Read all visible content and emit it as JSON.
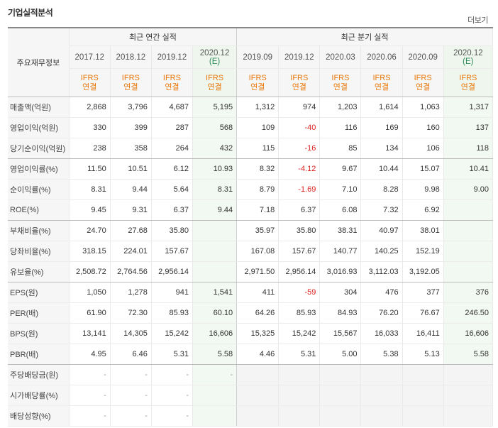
{
  "header": {
    "title": "기업실적분석",
    "more_label": "더보기"
  },
  "table": {
    "corner_label": "주요재무정보",
    "annual_header": "최근 연간 실적",
    "quarter_header": "최근 분기 실적",
    "periods": [
      {
        "label": "2017.12",
        "est": "",
        "std": "IFRS",
        "cons": "연결",
        "estimate": false
      },
      {
        "label": "2018.12",
        "est": "",
        "std": "IFRS",
        "cons": "연결",
        "estimate": false
      },
      {
        "label": "2019.12",
        "est": "",
        "std": "IFRS",
        "cons": "연결",
        "estimate": false
      },
      {
        "label": "2020.12",
        "est": "(E)",
        "std": "IFRS",
        "cons": "연결",
        "estimate": true
      },
      {
        "label": "2019.09",
        "est": "",
        "std": "IFRS",
        "cons": "연결",
        "estimate": false
      },
      {
        "label": "2019.12",
        "est": "",
        "std": "IFRS",
        "cons": "연결",
        "estimate": false
      },
      {
        "label": "2020.03",
        "est": "",
        "std": "IFRS",
        "cons": "연결",
        "estimate": false
      },
      {
        "label": "2020.06",
        "est": "",
        "std": "IFRS",
        "cons": "연결",
        "estimate": false
      },
      {
        "label": "2020.09",
        "est": "",
        "std": "IFRS",
        "cons": "연결",
        "estimate": false
      },
      {
        "label": "2020.12",
        "est": "(E)",
        "std": "IFRS",
        "cons": "연결",
        "estimate": true
      }
    ],
    "rows": [
      {
        "label": "매출액(억원)",
        "values": [
          "2,868",
          "3,796",
          "4,687",
          "5,195",
          "1,312",
          "974",
          "1,203",
          "1,614",
          "1,063",
          "1,317"
        ]
      },
      {
        "label": "영업이익(억원)",
        "values": [
          "330",
          "399",
          "287",
          "568",
          "109",
          "-40",
          "116",
          "169",
          "160",
          "137"
        ]
      },
      {
        "label": "당기순이익(억원)",
        "values": [
          "238",
          "358",
          "264",
          "432",
          "115",
          "-16",
          "85",
          "134",
          "106",
          "118"
        ]
      },
      {
        "label": "영업이익률(%)",
        "values": [
          "11.50",
          "10.51",
          "6.12",
          "10.93",
          "8.32",
          "-4.12",
          "9.67",
          "10.44",
          "15.07",
          "10.41"
        ]
      },
      {
        "label": "순이익률(%)",
        "values": [
          "8.31",
          "9.44",
          "5.64",
          "8.31",
          "8.79",
          "-1.69",
          "7.10",
          "8.28",
          "9.98",
          "9.00"
        ]
      },
      {
        "label": "ROE(%)",
        "values": [
          "9.45",
          "9.31",
          "6.37",
          "9.44",
          "7.18",
          "6.37",
          "6.08",
          "7.32",
          "6.92",
          ""
        ]
      },
      {
        "label": "부채비율(%)",
        "values": [
          "24.70",
          "27.68",
          "35.80",
          "",
          "35.97",
          "35.80",
          "38.31",
          "40.97",
          "38.01",
          ""
        ]
      },
      {
        "label": "당좌비율(%)",
        "values": [
          "318.15",
          "224.01",
          "157.67",
          "",
          "167.08",
          "157.67",
          "140.77",
          "140.25",
          "152.19",
          ""
        ]
      },
      {
        "label": "유보율(%)",
        "values": [
          "2,508.72",
          "2,764.56",
          "2,956.14",
          "",
          "2,971.50",
          "2,956.14",
          "3,016.93",
          "3,112.03",
          "3,192.05",
          ""
        ]
      },
      {
        "label": "EPS(원)",
        "values": [
          "1,050",
          "1,278",
          "941",
          "1,541",
          "411",
          "-59",
          "304",
          "476",
          "377",
          "376"
        ]
      },
      {
        "label": "PER(배)",
        "values": [
          "61.90",
          "72.30",
          "85.93",
          "60.10",
          "64.26",
          "85.93",
          "84.93",
          "76.20",
          "76.67",
          "246.50"
        ]
      },
      {
        "label": "BPS(원)",
        "values": [
          "13,141",
          "14,305",
          "15,242",
          "16,606",
          "15,325",
          "15,242",
          "15,567",
          "16,033",
          "16,411",
          "16,606"
        ]
      },
      {
        "label": "PBR(배)",
        "values": [
          "4.95",
          "6.46",
          "5.31",
          "5.58",
          "4.46",
          "5.31",
          "5.00",
          "5.38",
          "5.13",
          "5.58"
        ]
      },
      {
        "label": "주당배당금(원)",
        "values": [
          "-",
          "-",
          "-",
          "-",
          "",
          "",
          "",
          "",
          "",
          ""
        ]
      },
      {
        "label": "시가배당률(%)",
        "values": [
          "-",
          "-",
          "-",
          "",
          "",
          "",
          "",
          "",
          "",
          ""
        ]
      },
      {
        "label": "배당성향(%)",
        "values": [
          "-",
          "-",
          "-",
          "",
          "",
          "",
          "",
          "",
          "",
          ""
        ]
      }
    ]
  },
  "colors": {
    "negative": "#dd2222",
    "ifrs": "#e8780b",
    "estimate_bg": "#f2f8f2"
  }
}
